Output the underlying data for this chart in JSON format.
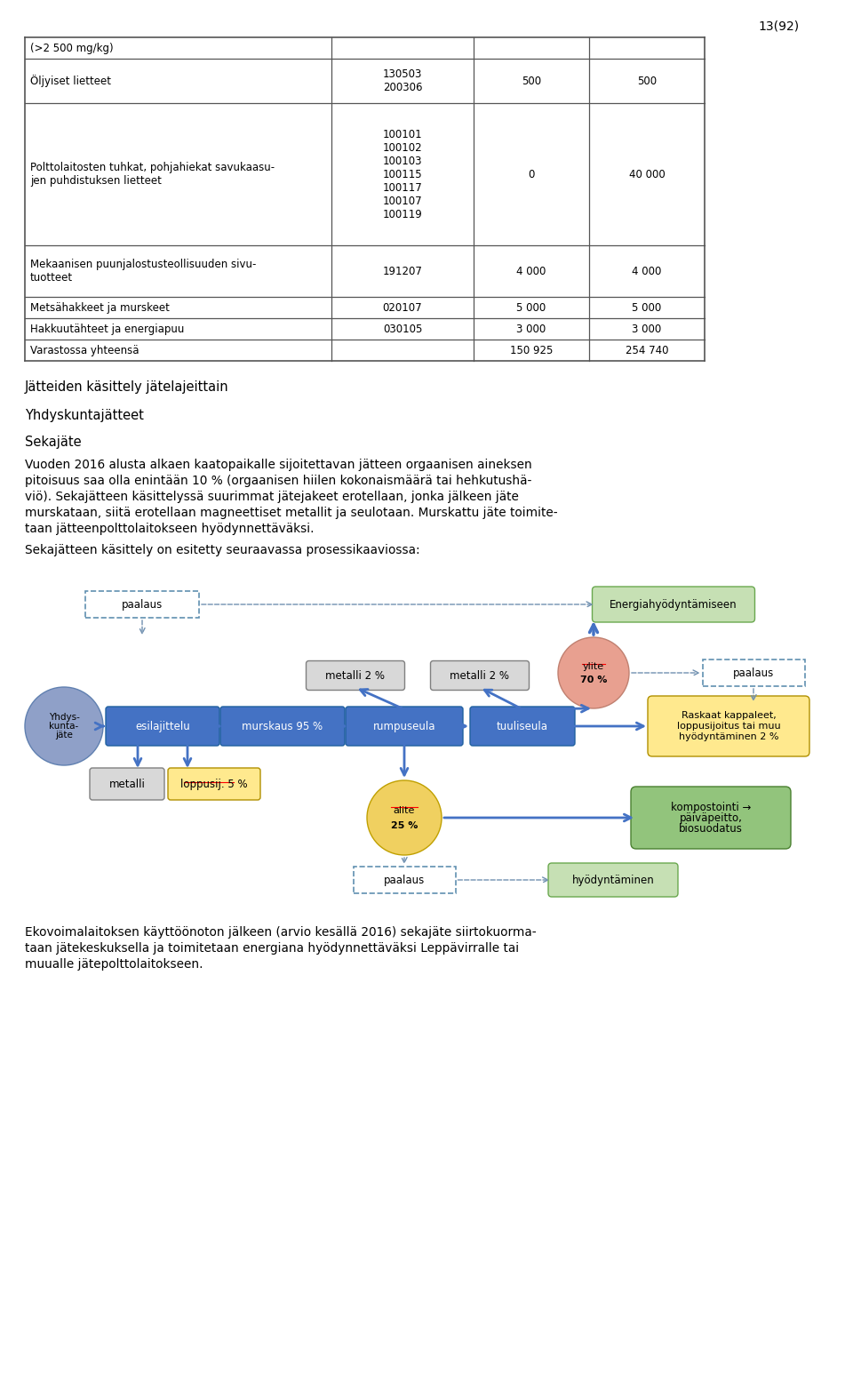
{
  "page_num": "13(92)",
  "table_rows": [
    {
      "col1": "(>2 500 mg/kg)",
      "col2": "",
      "col3": "",
      "col4": ""
    },
    {
      "col1": "Öljyiset lietteet",
      "col2": "130503\n200306",
      "col3": "500",
      "col4": "500"
    },
    {
      "col1": "Polttolaitosten tuhkat, pohjahiekat savukaasu-\njen puhdistuksen lietteet",
      "col2": "100101\n100102\n100103\n100115\n100117\n100107\n100119",
      "col3": "0",
      "col4": "40 000"
    },
    {
      "col1": "Mekaanisen puunjalostusteollisuuden sivu-\ntuotteet",
      "col2": "191207",
      "col3": "4 000",
      "col4": "4 000"
    },
    {
      "col1": "Metsähakkeet ja murskeet",
      "col2": "020107",
      "col3": "5 000",
      "col4": "5 000"
    },
    {
      "col1": "Hakkuutähteet ja energiapuu",
      "col2": "030105",
      "col3": "3 000",
      "col4": "3 000"
    },
    {
      "col1": "Varastossa yhteensä",
      "col2": "",
      "col3": "150 925",
      "col4": "254 740"
    }
  ],
  "heading1": "Jätteiden käsittely jätelajeittain",
  "heading2": "Yhdyskuntajätteet",
  "heading3": "Sekajäte",
  "para1_lines": [
    "Vuoden 2016 alusta alkaen kaatopaikalle sijoitettavan jätteen orgaanisen aineksen",
    "pitoisuus saa olla enintään 10 % (orgaanisen hiilen kokonaismäärä tai hehkutushä-",
    "viö). Sekajätteen käsittelyssä suurimmat jätejakeet erotellaan, jonka jälkeen jäte",
    "murskataan, siitä erotellaan magneettiset metallit ja seulotaan. Murskattu jäte toimite-",
    "taan jätteenpolttolaitokseen hyödynnettäväksi."
  ],
  "intro_line": "Sekajätteen käsittely on esitetty seuraavassa prosessikaaviossa:",
  "para2_lines": [
    "Ekovoimalaitoksen käyttöönoton jälkeen (arvio kesällä 2016) sekajäte siirtokuorma-",
    "taan jätekeskuksella ja toimitetaan energiana hyödynnettäväksi Leppävirralle tai",
    "muualle jätepolttolaitokseen."
  ],
  "bg_color": "#ffffff",
  "text_color": "#000000",
  "blue_box": "#4472C4",
  "blue_circle": "#8FA0C8",
  "salmon_circle": "#E8A090",
  "yellow_circle": "#F0D060",
  "green_box": "#92C47C",
  "yellow_box": "#FFE98E",
  "gray_box": "#D8D8D8",
  "light_green_box": "#C6E0B4",
  "dashed_color": "#7090B0",
  "arrow_blue": "#4472C4",
  "table_line_color": "#555555"
}
